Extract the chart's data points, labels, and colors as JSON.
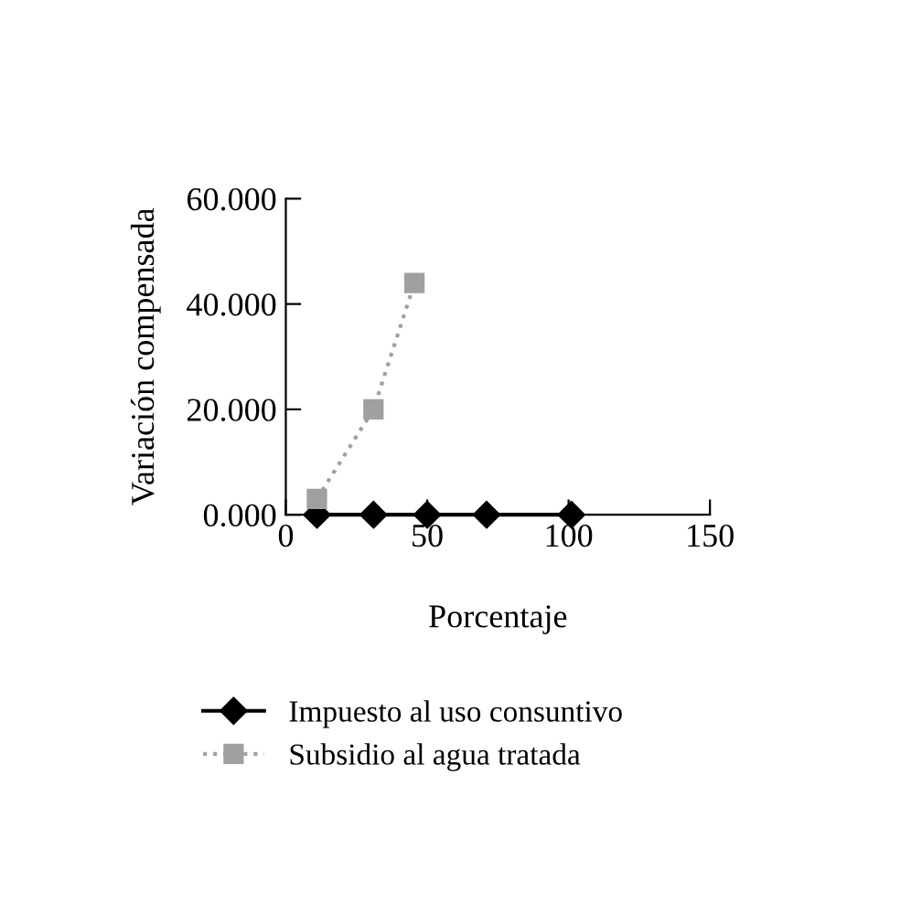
{
  "chart_data": {
    "type": "line",
    "xlabel": "Porcentaje",
    "ylabel": "Variación compensada",
    "xlim": [
      0,
      150
    ],
    "xticks": [
      0,
      50,
      100,
      150
    ],
    "ylim": [
      0,
      60
    ],
    "yticks": [
      {
        "value": 0,
        "label": "0.000"
      },
      {
        "value": 20,
        "label": "20.000"
      },
      {
        "value": 40,
        "label": "40.000"
      },
      {
        "value": 60,
        "label": "60.000"
      }
    ],
    "grid": false,
    "legend": "bottom",
    "series": [
      {
        "name": "Impuesto al uso consuntivo",
        "color": "#000000",
        "marker": "diamond",
        "line_style": "solid",
        "x": [
          11,
          31,
          50,
          71,
          101
        ],
        "values": [
          0,
          0,
          0,
          0,
          0
        ]
      },
      {
        "name": "Subsidio al agua tratada",
        "color": "#a0a0a0",
        "marker": "square",
        "line_style": "dotted",
        "x": [
          11,
          31,
          45.5
        ],
        "values": [
          3,
          20,
          44
        ]
      }
    ]
  }
}
